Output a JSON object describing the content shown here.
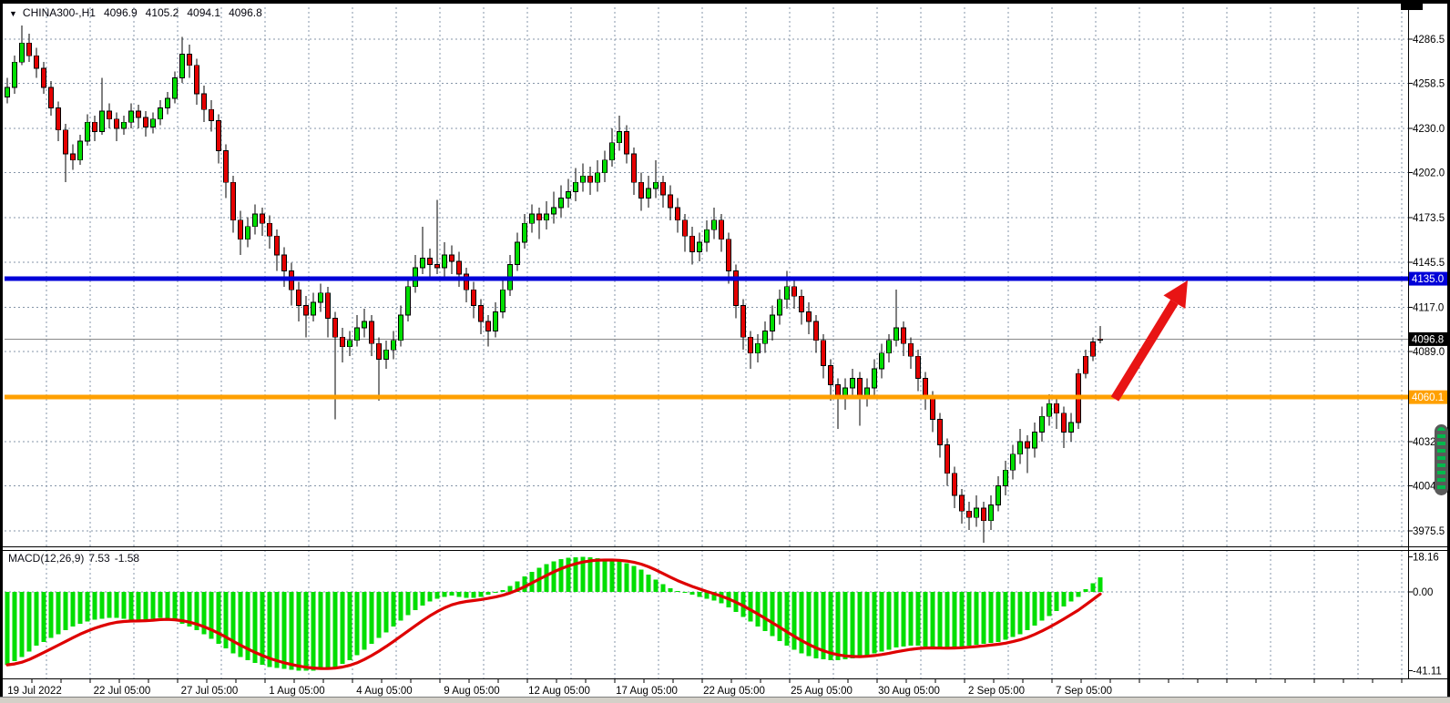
{
  "header": {
    "dropdown_icon": "▼",
    "symbol": "CHINA300-,H1",
    "open": "4096.9",
    "high": "4105.2",
    "low": "4094.1",
    "close": "4096.8"
  },
  "macd_panel": {
    "label": "MACD(12,26,9)",
    "macd_value": "7.53",
    "signal_value": "-1.58"
  },
  "colors": {
    "bull": "#00de00",
    "bear": "#e50000",
    "wick": "#000000",
    "grid": "#8595a8",
    "resistance": "#0000d8",
    "support": "#ffa000",
    "current": "#888888",
    "current_badge": "#000000",
    "signal": "#de0000",
    "histogram": "#00de00",
    "arrow": "#e81414"
  },
  "chart_data": [
    {
      "type": "candlestick",
      "title": "CHINA300-,H1",
      "timeframe": "H1",
      "ylim": [
        3966,
        4307
      ],
      "grid": true,
      "y_ticks": [
        "4286.5",
        "4258.5",
        "4230.0",
        "4202.0",
        "4173.5",
        "4145.5",
        "4117.0",
        "4089.0",
        "4060.5",
        "4032.0",
        "4004.0",
        "3975.5"
      ],
      "y_tick_values": [
        4286.5,
        4258.5,
        4230.0,
        4202.0,
        4173.5,
        4145.5,
        4117.0,
        4089.0,
        4060.5,
        4032.0,
        4004.0,
        3975.5
      ],
      "hidden_y_ticks": [
        "4060.5"
      ],
      "x_labels": [
        "19 Jul 2022",
        "22 Jul 05:00",
        "27 Jul 05:00",
        "1 Aug 05:00",
        "4 Aug 05:00",
        "9 Aug 05:00",
        "12 Aug 05:00",
        "17 Aug 05:00",
        "22 Aug 05:00",
        "25 Aug 05:00",
        "30 Aug 05:00",
        "2 Sep 05:00",
        "7 Sep 05:00"
      ],
      "levels": [
        {
          "name": "resistance-line",
          "price": 4135.0,
          "label": "4135.0",
          "color_key": "resistance",
          "width": 5
        },
        {
          "name": "support-line",
          "price": 4060.1,
          "label": "4060.1",
          "color_key": "support",
          "width": 5
        },
        {
          "name": "current-price-line",
          "price": 4096.8,
          "label": "4096.8",
          "color_key": "current",
          "width": 1
        }
      ],
      "arrow": {
        "start_bar": 152,
        "start_price": 4059,
        "end_bar": 162,
        "end_price": 4134
      },
      "candles": [
        [
          4250,
          4262,
          4246,
          4256
        ],
        [
          4256,
          4276,
          4252,
          4272
        ],
        [
          4272,
          4295,
          4270,
          4284
        ],
        [
          4284,
          4290,
          4272,
          4276
        ],
        [
          4276,
          4281,
          4262,
          4268
        ],
        [
          4268,
          4272,
          4252,
          4256
        ],
        [
          4256,
          4260,
          4238,
          4243
        ],
        [
          4243,
          4247,
          4222,
          4229
        ],
        [
          4229,
          4233,
          4196,
          4214
        ],
        [
          4214,
          4220,
          4204,
          4210
        ],
        [
          4210,
          4226,
          4207,
          4222
        ],
        [
          4222,
          4239,
          4219,
          4234
        ],
        [
          4234,
          4238,
          4222,
          4228
        ],
        [
          4228,
          4262,
          4226,
          4241
        ],
        [
          4241,
          4246,
          4230,
          4236
        ],
        [
          4236,
          4240,
          4222,
          4230
        ],
        [
          4230,
          4238,
          4226,
          4234
        ],
        [
          4234,
          4246,
          4230,
          4241
        ],
        [
          4241,
          4245,
          4230,
          4237
        ],
        [
          4237,
          4241,
          4225,
          4231
        ],
        [
          4231,
          4240,
          4227,
          4236
        ],
        [
          4236,
          4248,
          4232,
          4243
        ],
        [
          4243,
          4253,
          4239,
          4249
        ],
        [
          4249,
          4266,
          4246,
          4262
        ],
        [
          4262,
          4288,
          4259,
          4277
        ],
        [
          4277,
          4283,
          4262,
          4270
        ],
        [
          4270,
          4274,
          4245,
          4252
        ],
        [
          4252,
          4257,
          4234,
          4242
        ],
        [
          4242,
          4248,
          4228,
          4235
        ],
        [
          4235,
          4239,
          4208,
          4216
        ],
        [
          4216,
          4220,
          4186,
          4196
        ],
        [
          4196,
          4200,
          4164,
          4172
        ],
        [
          4172,
          4178,
          4150,
          4160
        ],
        [
          4160,
          4174,
          4155,
          4168
        ],
        [
          4168,
          4182,
          4163,
          4176
        ],
        [
          4176,
          4180,
          4162,
          4170
        ],
        [
          4170,
          4175,
          4154,
          4162
        ],
        [
          4162,
          4166,
          4140,
          4150
        ],
        [
          4150,
          4155,
          4130,
          4140
        ],
        [
          4140,
          4145,
          4118,
          4128
        ],
        [
          4128,
          4133,
          4108,
          4118
        ],
        [
          4118,
          4124,
          4098,
          4112
        ],
        [
          4112,
          4126,
          4108,
          4120
        ],
        [
          4120,
          4132,
          4114,
          4126
        ],
        [
          4126,
          4130,
          4098,
          4110
        ],
        [
          4110,
          4114,
          4046,
          4098
        ],
        [
          4098,
          4104,
          4082,
          4092
        ],
        [
          4092,
          4102,
          4086,
          4096
        ],
        [
          4096,
          4112,
          4092,
          4104
        ],
        [
          4104,
          4116,
          4098,
          4108
        ],
        [
          4108,
          4112,
          4086,
          4094
        ],
        [
          4094,
          4098,
          4058,
          4084
        ],
        [
          4084,
          4096,
          4078,
          4090
        ],
        [
          4090,
          4102,
          4084,
          4096
        ],
        [
          4096,
          4118,
          4092,
          4112
        ],
        [
          4112,
          4136,
          4108,
          4130
        ],
        [
          4130,
          4150,
          4126,
          4142
        ],
        [
          4142,
          4168,
          4138,
          4148
        ],
        [
          4148,
          4154,
          4136,
          4144
        ],
        [
          4144,
          4185,
          4138,
          4142
        ],
        [
          4142,
          4158,
          4136,
          4150
        ],
        [
          4150,
          4156,
          4138,
          4146
        ],
        [
          4146,
          4152,
          4130,
          4138
        ],
        [
          4138,
          4142,
          4120,
          4128
        ],
        [
          4128,
          4133,
          4110,
          4118
        ],
        [
          4118,
          4122,
          4100,
          4108
        ],
        [
          4108,
          4112,
          4092,
          4102
        ],
        [
          4102,
          4120,
          4098,
          4114
        ],
        [
          4114,
          4134,
          4110,
          4128
        ],
        [
          4128,
          4150,
          4124,
          4144
        ],
        [
          4144,
          4164,
          4140,
          4158
        ],
        [
          4158,
          4176,
          4154,
          4170
        ],
        [
          4170,
          4182,
          4164,
          4176
        ],
        [
          4176,
          4180,
          4160,
          4172
        ],
        [
          4172,
          4184,
          4166,
          4176
        ],
        [
          4176,
          4190,
          4170,
          4180
        ],
        [
          4180,
          4194,
          4174,
          4186
        ],
        [
          4186,
          4198,
          4180,
          4190
        ],
        [
          4190,
          4205,
          4184,
          4196
        ],
        [
          4196,
          4208,
          4190,
          4200
        ],
        [
          4200,
          4206,
          4188,
          4196
        ],
        [
          4196,
          4210,
          4190,
          4202
        ],
        [
          4202,
          4216,
          4196,
          4210
        ],
        [
          4210,
          4230,
          4206,
          4221
        ],
        [
          4221,
          4238,
          4216,
          4228
        ],
        [
          4228,
          4232,
          4208,
          4214
        ],
        [
          4214,
          4218,
          4188,
          4196
        ],
        [
          4196,
          4202,
          4178,
          4186
        ],
        [
          4186,
          4200,
          4180,
          4192
        ],
        [
          4192,
          4210,
          4186,
          4196
        ],
        [
          4196,
          4200,
          4180,
          4188
        ],
        [
          4188,
          4194,
          4172,
          4180
        ],
        [
          4180,
          4186,
          4164,
          4172
        ],
        [
          4172,
          4176,
          4152,
          4162
        ],
        [
          4162,
          4168,
          4144,
          4152
        ],
        [
          4152,
          4164,
          4146,
          4158
        ],
        [
          4158,
          4172,
          4152,
          4166
        ],
        [
          4166,
          4180,
          4160,
          4172
        ],
        [
          4172,
          4176,
          4152,
          4160
        ],
        [
          4160,
          4164,
          4132,
          4140
        ],
        [
          4140,
          4144,
          4110,
          4118
        ],
        [
          4118,
          4122,
          4090,
          4098
        ],
        [
          4098,
          4102,
          4078,
          4088
        ],
        [
          4088,
          4100,
          4082,
          4094
        ],
        [
          4094,
          4108,
          4088,
          4102
        ],
        [
          4102,
          4118,
          4096,
          4112
        ],
        [
          4112,
          4128,
          4106,
          4122
        ],
        [
          4122,
          4140,
          4116,
          4130
        ],
        [
          4130,
          4134,
          4116,
          4124
        ],
        [
          4124,
          4128,
          4106,
          4114
        ],
        [
          4114,
          4120,
          4100,
          4108
        ],
        [
          4108,
          4112,
          4088,
          4096
        ],
        [
          4096,
          4100,
          4072,
          4080
        ],
        [
          4080,
          4084,
          4058,
          4068
        ],
        [
          4068,
          4072,
          4040,
          4060
        ],
        [
          4060,
          4072,
          4052,
          4066
        ],
        [
          4066,
          4078,
          4060,
          4072
        ],
        [
          4072,
          4076,
          4042,
          4060
        ],
        [
          4060,
          4072,
          4054,
          4066
        ],
        [
          4066,
          4084,
          4060,
          4078
        ],
        [
          4078,
          4094,
          4072,
          4088
        ],
        [
          4088,
          4100,
          4082,
          4096
        ],
        [
          4096,
          4128,
          4092,
          4104
        ],
        [
          4104,
          4108,
          4086,
          4094
        ],
        [
          4094,
          4098,
          4078,
          4086
        ],
        [
          4086,
          4090,
          4064,
          4072
        ],
        [
          4072,
          4076,
          4052,
          4060
        ],
        [
          4060,
          4064,
          4038,
          4046
        ],
        [
          4046,
          4050,
          4022,
          4030
        ],
        [
          4030,
          4034,
          4004,
          4012
        ],
        [
          4012,
          4016,
          3990,
          3998
        ],
        [
          3998,
          4002,
          3980,
          3988
        ],
        [
          3988,
          3994,
          3976,
          3984
        ],
        [
          3984,
          3998,
          3978,
          3990
        ],
        [
          3990,
          3994,
          3968,
          3982
        ],
        [
          3982,
          3998,
          3976,
          3992
        ],
        [
          3992,
          4010,
          3988,
          4004
        ],
        [
          4004,
          4020,
          3998,
          4014
        ],
        [
          4014,
          4030,
          4008,
          4024
        ],
        [
          4024,
          4040,
          4018,
          4032
        ],
        [
          4032,
          4036,
          4012,
          4028
        ],
        [
          4028,
          4044,
          4022,
          4038
        ],
        [
          4038,
          4054,
          4032,
          4048
        ],
        [
          4048,
          4062,
          4042,
          4056
        ],
        [
          4056,
          4060,
          4040,
          4050
        ],
        [
          4050,
          4054,
          4028,
          4038
        ],
        [
          4038,
          4050,
          4032,
          4044
        ],
        [
          4075,
          4078,
          4040,
          4044
        ],
        [
          4086,
          4090,
          4072,
          4075
        ],
        [
          4095,
          4098,
          4083,
          4086
        ],
        [
          4096.9,
          4105.2,
          4094.1,
          4096.8
        ]
      ]
    },
    {
      "type": "macd",
      "label": "MACD(12,26,9)",
      "signal_period": 9,
      "ylim": [
        -45,
        18.16
      ],
      "y_ticks": [
        "18.16",
        "0.00",
        "-41.11"
      ],
      "y_tick_values": [
        18.16,
        0.0,
        -41.11
      ],
      "current_macd": 7.53,
      "current_signal": -1.58,
      "values": [
        -38,
        -36,
        -34,
        -31,
        -28,
        -26,
        -24,
        -22,
        -20,
        -18,
        -16.5,
        -15.5,
        -14.5,
        -14,
        -13.5,
        -13.5,
        -14,
        -14.5,
        -15,
        -14.5,
        -14,
        -13.5,
        -14,
        -15,
        -16.5,
        -18,
        -20,
        -22,
        -24.5,
        -27,
        -29.5,
        -32,
        -34,
        -35.5,
        -37,
        -38,
        -39,
        -39.5,
        -40,
        -40.5,
        -41,
        -41.11,
        -41,
        -40.5,
        -40,
        -39,
        -37.5,
        -35.5,
        -33,
        -30,
        -27,
        -24,
        -21,
        -18,
        -15,
        -12,
        -9.5,
        -7,
        -5,
        -3.5,
        -2.5,
        -2,
        -2.5,
        -3,
        -3,
        -2.5,
        -1.5,
        -0.5,
        1,
        3,
        5.5,
        8,
        10.5,
        12.5,
        14.5,
        16,
        17,
        17.8,
        18.1,
        18.16,
        18,
        17.5,
        17,
        16.5,
        16,
        15,
        13.5,
        11.5,
        9,
        6.5,
        4,
        2,
        0.5,
        -0.5,
        -1.5,
        -2.5,
        -3.5,
        -4.5,
        -6,
        -8,
        -10.5,
        -13,
        -15.5,
        -18,
        -20.5,
        -23,
        -25.5,
        -28,
        -30,
        -32,
        -33.5,
        -34.5,
        -35,
        -35.5,
        -35.5,
        -35,
        -34.5,
        -34,
        -33,
        -32,
        -31,
        -30,
        -29,
        -28.5,
        -28,
        -28,
        -28.5,
        -29,
        -29.5,
        -29.5,
        -29,
        -28.5,
        -28,
        -27.5,
        -27,
        -26.5,
        -26,
        -25,
        -23.5,
        -22,
        -20,
        -17.5,
        -15,
        -12.5,
        -10,
        -7.5,
        -5,
        -2.5,
        1.5,
        4.5,
        7.53
      ]
    }
  ]
}
